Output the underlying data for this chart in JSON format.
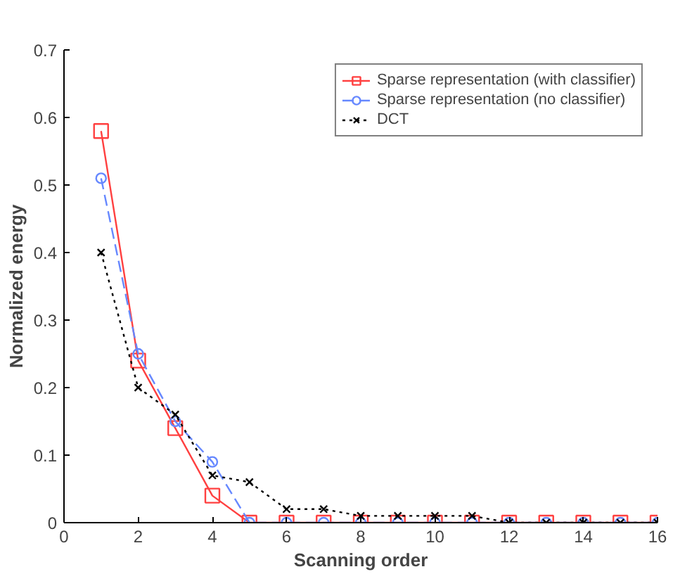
{
  "chart_data": {
    "type": "line",
    "xlabel": "Scanning order",
    "ylabel": "Normalized energy",
    "x": [
      1,
      2,
      3,
      4,
      5,
      6,
      7,
      8,
      9,
      10,
      11,
      12,
      13,
      14,
      15,
      16
    ],
    "series": [
      {
        "name": "Sparse representation (with classifier)",
        "color": "#ff4040",
        "marker": "square",
        "line_style": "solid",
        "values": [
          0.58,
          0.24,
          0.14,
          0.04,
          0,
          0,
          0,
          0,
          0,
          0,
          0,
          0,
          0,
          0,
          0,
          0
        ]
      },
      {
        "name": "Sparse representation (no classifier)",
        "color": "#6688ff",
        "marker": "circle",
        "line_style": "dashed",
        "values": [
          0.51,
          0.25,
          0.15,
          0.09,
          0,
          0,
          0,
          0,
          0,
          0,
          0,
          0,
          0,
          0,
          0,
          0
        ]
      },
      {
        "name": "DCT",
        "color": "#000000",
        "marker": "cross",
        "line_style": "dotted",
        "values": [
          0.4,
          0.2,
          0.16,
          0.07,
          0.06,
          0.02,
          0.02,
          0.01,
          0.01,
          0.01,
          0.01,
          0,
          0,
          0,
          0,
          0
        ]
      }
    ],
    "xlim": [
      0,
      16
    ],
    "xticks": [
      0,
      2,
      4,
      6,
      8,
      10,
      12,
      14,
      16
    ],
    "ylim": [
      0,
      0.7
    ],
    "yticks": [
      0,
      0.1,
      0.2,
      0.3,
      0.4,
      0.5,
      0.6,
      0.7
    ],
    "grid": false,
    "legend": "top right"
  }
}
